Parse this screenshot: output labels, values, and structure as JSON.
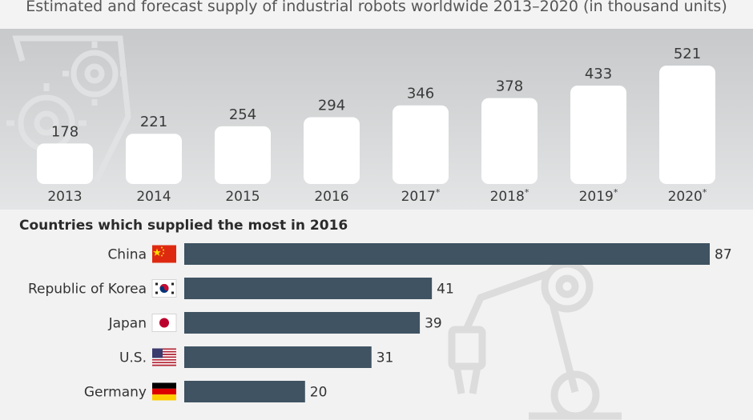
{
  "header": {
    "subtitle": "Estimated and forecast supply of industrial robots worldwide 2013–2020 (in thousand units)"
  },
  "colors": {
    "bar_dark": "#3f5362",
    "bar_light": "#ffffff",
    "panel_gray": "#cfd1d2",
    "background": "#f3f3f3"
  },
  "icons": [
    "gears-icon",
    "robot-arm-icon",
    "flag-china-icon",
    "flag-korea-icon",
    "flag-japan-icon",
    "flag-us-icon",
    "flag-germany-icon"
  ],
  "chart_data": [
    {
      "type": "bar",
      "title": "Estimated and forecast supply of industrial robots worldwide 2013–2020 (in thousand units)",
      "categories": [
        "2013",
        "2014",
        "2015",
        "2016",
        "2017*",
        "2018*",
        "2019*",
        "2020*"
      ],
      "values": [
        178,
        221,
        254,
        294,
        346,
        378,
        433,
        521
      ],
      "data_labels": [
        "178",
        "221",
        "254",
        "294",
        "346",
        "378",
        "433",
        "521"
      ],
      "ylim": [
        0,
        521
      ],
      "grid": false,
      "legend": "none"
    },
    {
      "type": "bar",
      "orientation": "horizontal",
      "title": "Countries which supplied the most in 2016",
      "categories": [
        "China",
        "Republic of Korea",
        "Japan",
        "U.S.",
        "Germany"
      ],
      "values": [
        87,
        41,
        39,
        31,
        20
      ],
      "data_labels": [
        "87",
        "41",
        "39",
        "31",
        "20"
      ],
      "flags": [
        "flag-china-icon",
        "flag-korea-icon",
        "flag-japan-icon",
        "flag-us-icon",
        "flag-germany-icon"
      ],
      "xlim": [
        0,
        87
      ],
      "grid": false,
      "legend": "none"
    }
  ]
}
